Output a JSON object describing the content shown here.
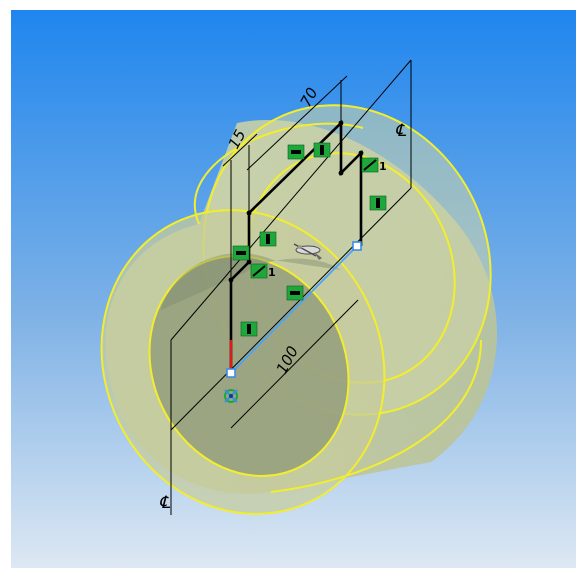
{
  "viewport": {
    "background_top": "#1f86ee",
    "background_bottom": "#dde8f3"
  },
  "colors": {
    "edge_highlight": "#f2ee2e",
    "body_fill": "#c9cfa0",
    "bore_fill": "#8e9a7a",
    "sketch_line": "#000000",
    "dimension_line": "#000000",
    "construction_line": "#4aa3ff",
    "relation_badge": "#1ea83c",
    "origin_red": "#e01818",
    "endpoint_blue": "#3c8ce6"
  },
  "dimensions": {
    "width_15": "15",
    "width_70": "70",
    "length_100": "100"
  },
  "centerline_symbols": {
    "right": "℄",
    "bottom": "℄"
  },
  "relations": {
    "horizontal_glyph": "━",
    "vertical_glyph": "┃",
    "equal_count": "1"
  },
  "icons": {
    "origin": "origin-icon",
    "cursor": "revolve-cursor-icon"
  }
}
